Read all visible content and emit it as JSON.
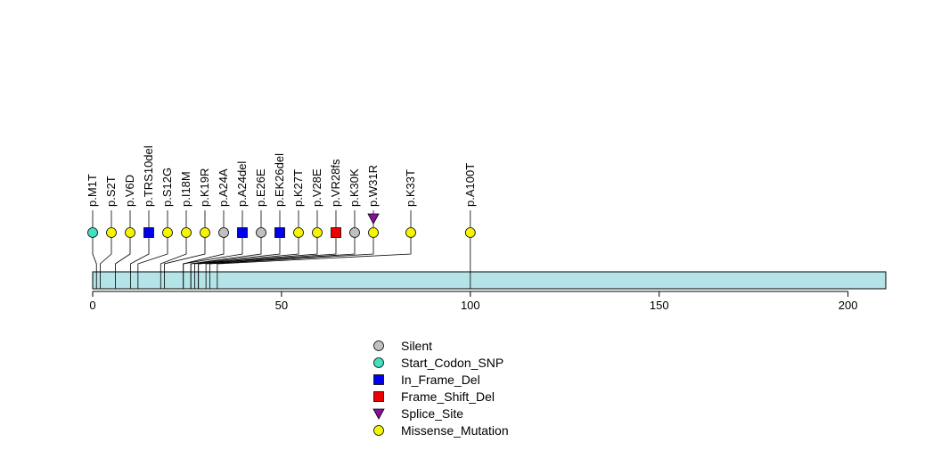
{
  "chart_data": {
    "type": "scatter",
    "title": "",
    "xlabel": "",
    "ylabel": "",
    "protein_length": 210,
    "xlim": [
      0,
      210
    ],
    "x_ticks": [
      0,
      50,
      100,
      150,
      200
    ],
    "x_tick_labels": [
      "0",
      "50",
      "100",
      "150",
      "200"
    ],
    "domain_bar_color": "#b5e4e8",
    "legend_position": "bottom-center",
    "mutation_types": [
      {
        "name": "Silent",
        "shape": "circle",
        "color": "#c0c0c0"
      },
      {
        "name": "Start_Codon_SNP",
        "shape": "circle",
        "color": "#40e0c0"
      },
      {
        "name": "In_Frame_Del",
        "shape": "square",
        "color": "#0000ee"
      },
      {
        "name": "Frame_Shift_Del",
        "shape": "square",
        "color": "#ee0000"
      },
      {
        "name": "Splice_Site",
        "shape": "triangle-down",
        "color": "#8a0f9e"
      },
      {
        "name": "Missense_Mutation",
        "shape": "circle",
        "color": "#f5f500"
      }
    ],
    "mutations": [
      {
        "label": "p.M1T",
        "position": 1,
        "type": "Start_Codon_SNP"
      },
      {
        "label": "p.S2T",
        "position": 2,
        "type": "Missense_Mutation"
      },
      {
        "label": "p.V6D",
        "position": 6,
        "type": "Missense_Mutation"
      },
      {
        "label": "p.TRS10del",
        "position": 10,
        "type": "In_Frame_Del"
      },
      {
        "label": "p.S12G",
        "position": 12,
        "type": "Missense_Mutation"
      },
      {
        "label": "p.I18M",
        "position": 18,
        "type": "Missense_Mutation"
      },
      {
        "label": "p.K19R",
        "position": 19,
        "type": "Missense_Mutation"
      },
      {
        "label": "p.A24A",
        "position": 24,
        "type": "Silent"
      },
      {
        "label": "p.A24del",
        "position": 24,
        "type": "In_Frame_Del"
      },
      {
        "label": "p.E26E",
        "position": 26,
        "type": "Silent"
      },
      {
        "label": "p.EK26del",
        "position": 26,
        "type": "In_Frame_Del"
      },
      {
        "label": "p.K27T",
        "position": 27,
        "type": "Missense_Mutation"
      },
      {
        "label": "p.V28E",
        "position": 28,
        "type": "Missense_Mutation"
      },
      {
        "label": "p.VR28fs",
        "position": 28,
        "type": "Frame_Shift_Del"
      },
      {
        "label": "p.K30K",
        "position": 30,
        "type": "Silent"
      },
      {
        "label": "p.W31R",
        "position": 31,
        "type": "Missense_Mutation"
      },
      {
        "label": "p.W31R",
        "position": 31,
        "type": "Splice_Site"
      },
      {
        "label": "p.K33T",
        "position": 33,
        "type": "Missense_Mutation"
      },
      {
        "label": "p.A100T",
        "position": 100,
        "type": "Missense_Mutation"
      }
    ]
  }
}
